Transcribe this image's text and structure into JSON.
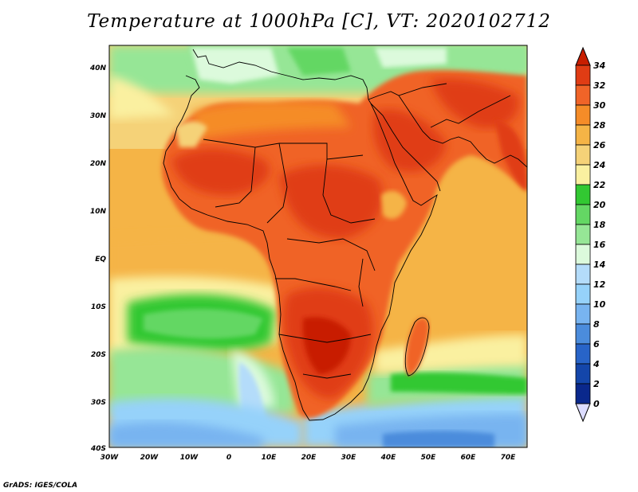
{
  "title": "Temperature at 1000hPa [C], VT: 2020102712",
  "credit": "GrADS: IGES/COLA",
  "map": {
    "lat_labels": [
      "40N",
      "30N",
      "20N",
      "10N",
      "EQ",
      "10S",
      "20S",
      "30S",
      "40S"
    ],
    "lon_labels": [
      "30W",
      "20W",
      "10W",
      "0",
      "10E",
      "20E",
      "30E",
      "40E",
      "50E",
      "60E",
      "70E"
    ]
  },
  "colorbar": {
    "labels": [
      "34",
      "32",
      "30",
      "28",
      "26",
      "24",
      "22",
      "20",
      "18",
      "16",
      "14",
      "12",
      "10",
      "8",
      "6",
      "4",
      "2",
      "0"
    ],
    "colors": [
      "#c81e00",
      "#e03c14",
      "#f06428",
      "#f58c28",
      "#f5b446",
      "#f5d278",
      "#faf0a0",
      "#32c832",
      "#64d764",
      "#96e696",
      "#dcfadc",
      "#b4dcfa",
      "#96d2fa",
      "#78b4f0",
      "#4b8cdc",
      "#2864c8",
      "#1446aa",
      "#0a288c",
      "#00146e"
    ],
    "top_arrow_color": "#c81e00",
    "bottom_arrow_color": "#dcdcff"
  }
}
